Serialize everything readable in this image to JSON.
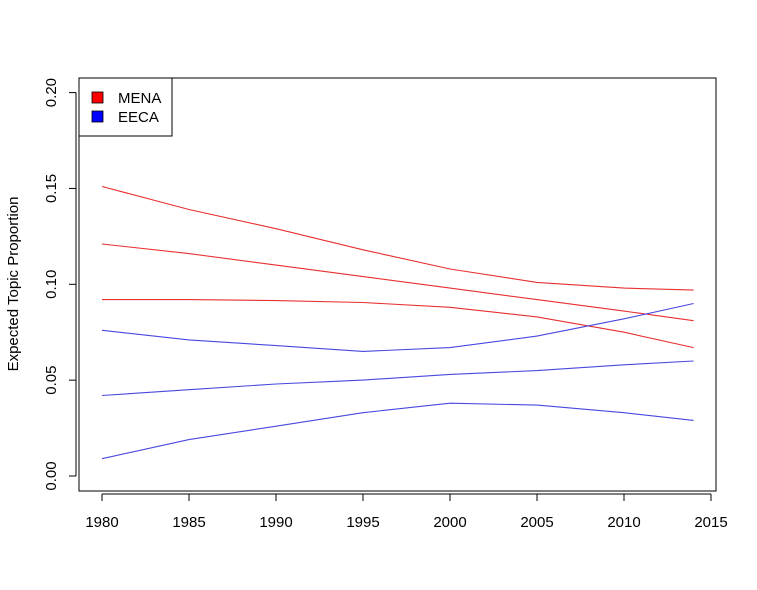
{
  "chart_data": {
    "type": "line",
    "title": "",
    "xlabel": "",
    "ylabel": "Expected Topic Proportion",
    "xlim": [
      1980,
      2014
    ],
    "ylim": [
      0,
      0.2
    ],
    "x_ticks": [
      1980,
      1985,
      1990,
      1995,
      2000,
      2005,
      2010,
      2015
    ],
    "x_tick_labels": [
      "1980",
      "1985",
      "1990",
      "1995",
      "2000",
      "2005",
      "2010",
      "2015"
    ],
    "y_ticks": [
      0,
      0.05,
      0.1,
      0.15,
      0.2
    ],
    "y_tick_labels": [
      "0.00",
      "0.05",
      "0.10",
      "0.15",
      "0.20"
    ],
    "grid": false,
    "legend": {
      "position": "top-left",
      "entries": [
        {
          "label": "MENA",
          "color": "#ff0000"
        },
        {
          "label": "EECA",
          "color": "#0000ff"
        }
      ]
    },
    "x": [
      1980,
      1985,
      1990,
      1995,
      2000,
      2005,
      2010,
      2014
    ],
    "series": [
      {
        "group": "MENA",
        "color": "#e83030",
        "values": [
          0.151,
          0.139,
          0.129,
          0.118,
          0.108,
          0.101,
          0.098,
          0.097
        ]
      },
      {
        "group": "MENA",
        "color": "#e83030",
        "values": [
          0.121,
          0.116,
          0.11,
          0.104,
          0.098,
          0.092,
          0.086,
          0.081
        ]
      },
      {
        "group": "MENA",
        "color": "#e83030",
        "values": [
          0.092,
          0.092,
          0.0915,
          0.0905,
          0.088,
          0.083,
          0.075,
          0.067
        ]
      },
      {
        "group": "EECA",
        "color": "#4848e0",
        "values": [
          0.076,
          0.071,
          0.068,
          0.065,
          0.067,
          0.073,
          0.082,
          0.09
        ]
      },
      {
        "group": "EECA",
        "color": "#4848e0",
        "values": [
          0.042,
          0.045,
          0.048,
          0.05,
          0.053,
          0.055,
          0.058,
          0.06
        ]
      },
      {
        "group": "EECA",
        "color": "#4848e0",
        "values": [
          0.009,
          0.019,
          0.026,
          0.033,
          0.038,
          0.037,
          0.033,
          0.029
        ]
      }
    ]
  }
}
